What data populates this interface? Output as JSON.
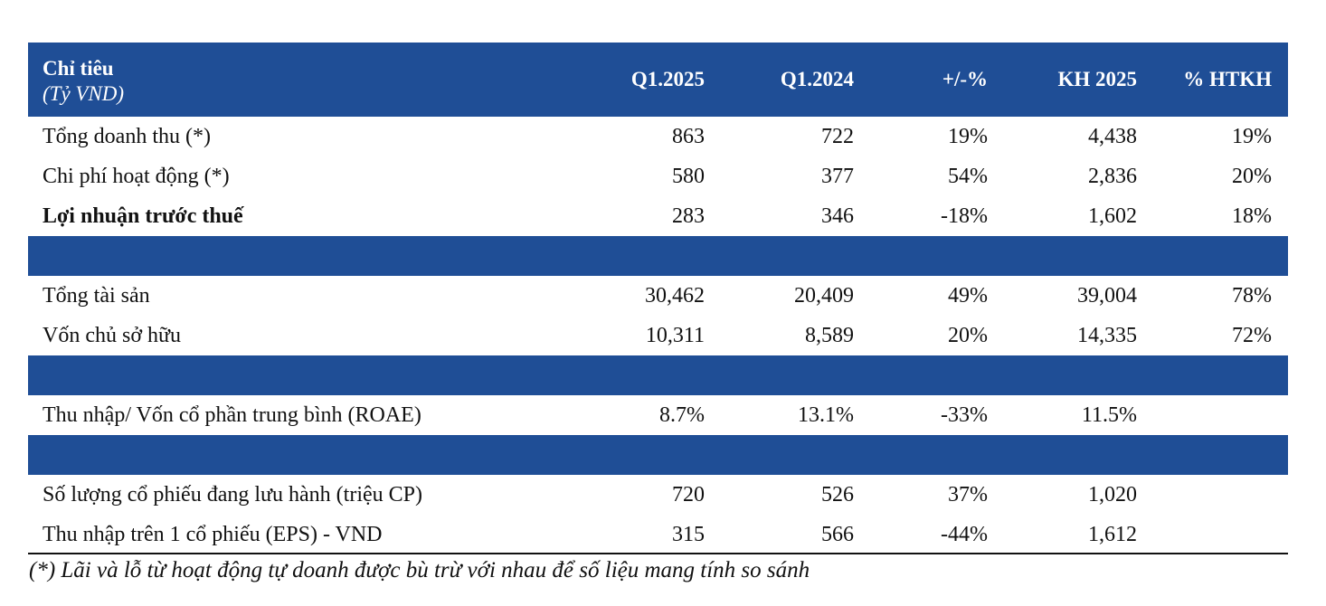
{
  "header": {
    "label_line1": "Chỉ tiêu",
    "label_line2": "(Tỷ VND)",
    "col1": "Q1.2025",
    "col2": "Q1.2024",
    "col3": "+/-%",
    "col4": "KH 2025",
    "col5": "% HTKH"
  },
  "rows": [
    {
      "label": "Tổng doanh thu (*)",
      "v1": "863",
      "v2": "722",
      "v3": "19%",
      "v4": "4,438",
      "v5": "19%"
    },
    {
      "label": "Chi phí hoạt động (*)",
      "v1": "580",
      "v2": "377",
      "v3": "54%",
      "v4": "2,836",
      "v5": "20%"
    },
    {
      "label": "Lợi nhuận trước thuế",
      "v1": "283",
      "v2": "346",
      "v3": "-18%",
      "v4": "1,602",
      "v5": "18%"
    },
    {
      "label": "Tổng tài sản",
      "v1": "30,462",
      "v2": "20,409",
      "v3": "49%",
      "v4": "39,004",
      "v5": "78%"
    },
    {
      "label": "Vốn chủ sở hữu",
      "v1": "10,311",
      "v2": "8,589",
      "v3": "20%",
      "v4": "14,335",
      "v5": "72%"
    },
    {
      "label": "Thu nhập/ Vốn cổ phần trung bình (ROAE)",
      "v1": "8.7%",
      "v2": "13.1%",
      "v3": "-33%",
      "v4": "11.5%",
      "v5": ""
    },
    {
      "label": "Số lượng cổ phiếu đang lưu hành (triệu CP)",
      "v1": "720",
      "v2": "526",
      "v3": "37%",
      "v4": "1,020",
      "v5": ""
    },
    {
      "label": "Thu nhập trên 1 cổ phiếu (EPS) - VND",
      "v1": "315",
      "v2": "566",
      "v3": "-44%",
      "v4": "1,612",
      "v5": ""
    }
  ],
  "footnote": "(*) Lãi và lỗ từ hoạt động tự doanh được bù trừ với nhau để số liệu mang tính so sánh",
  "colors": {
    "header_bg": "#1F4E96",
    "text": "#111111"
  }
}
